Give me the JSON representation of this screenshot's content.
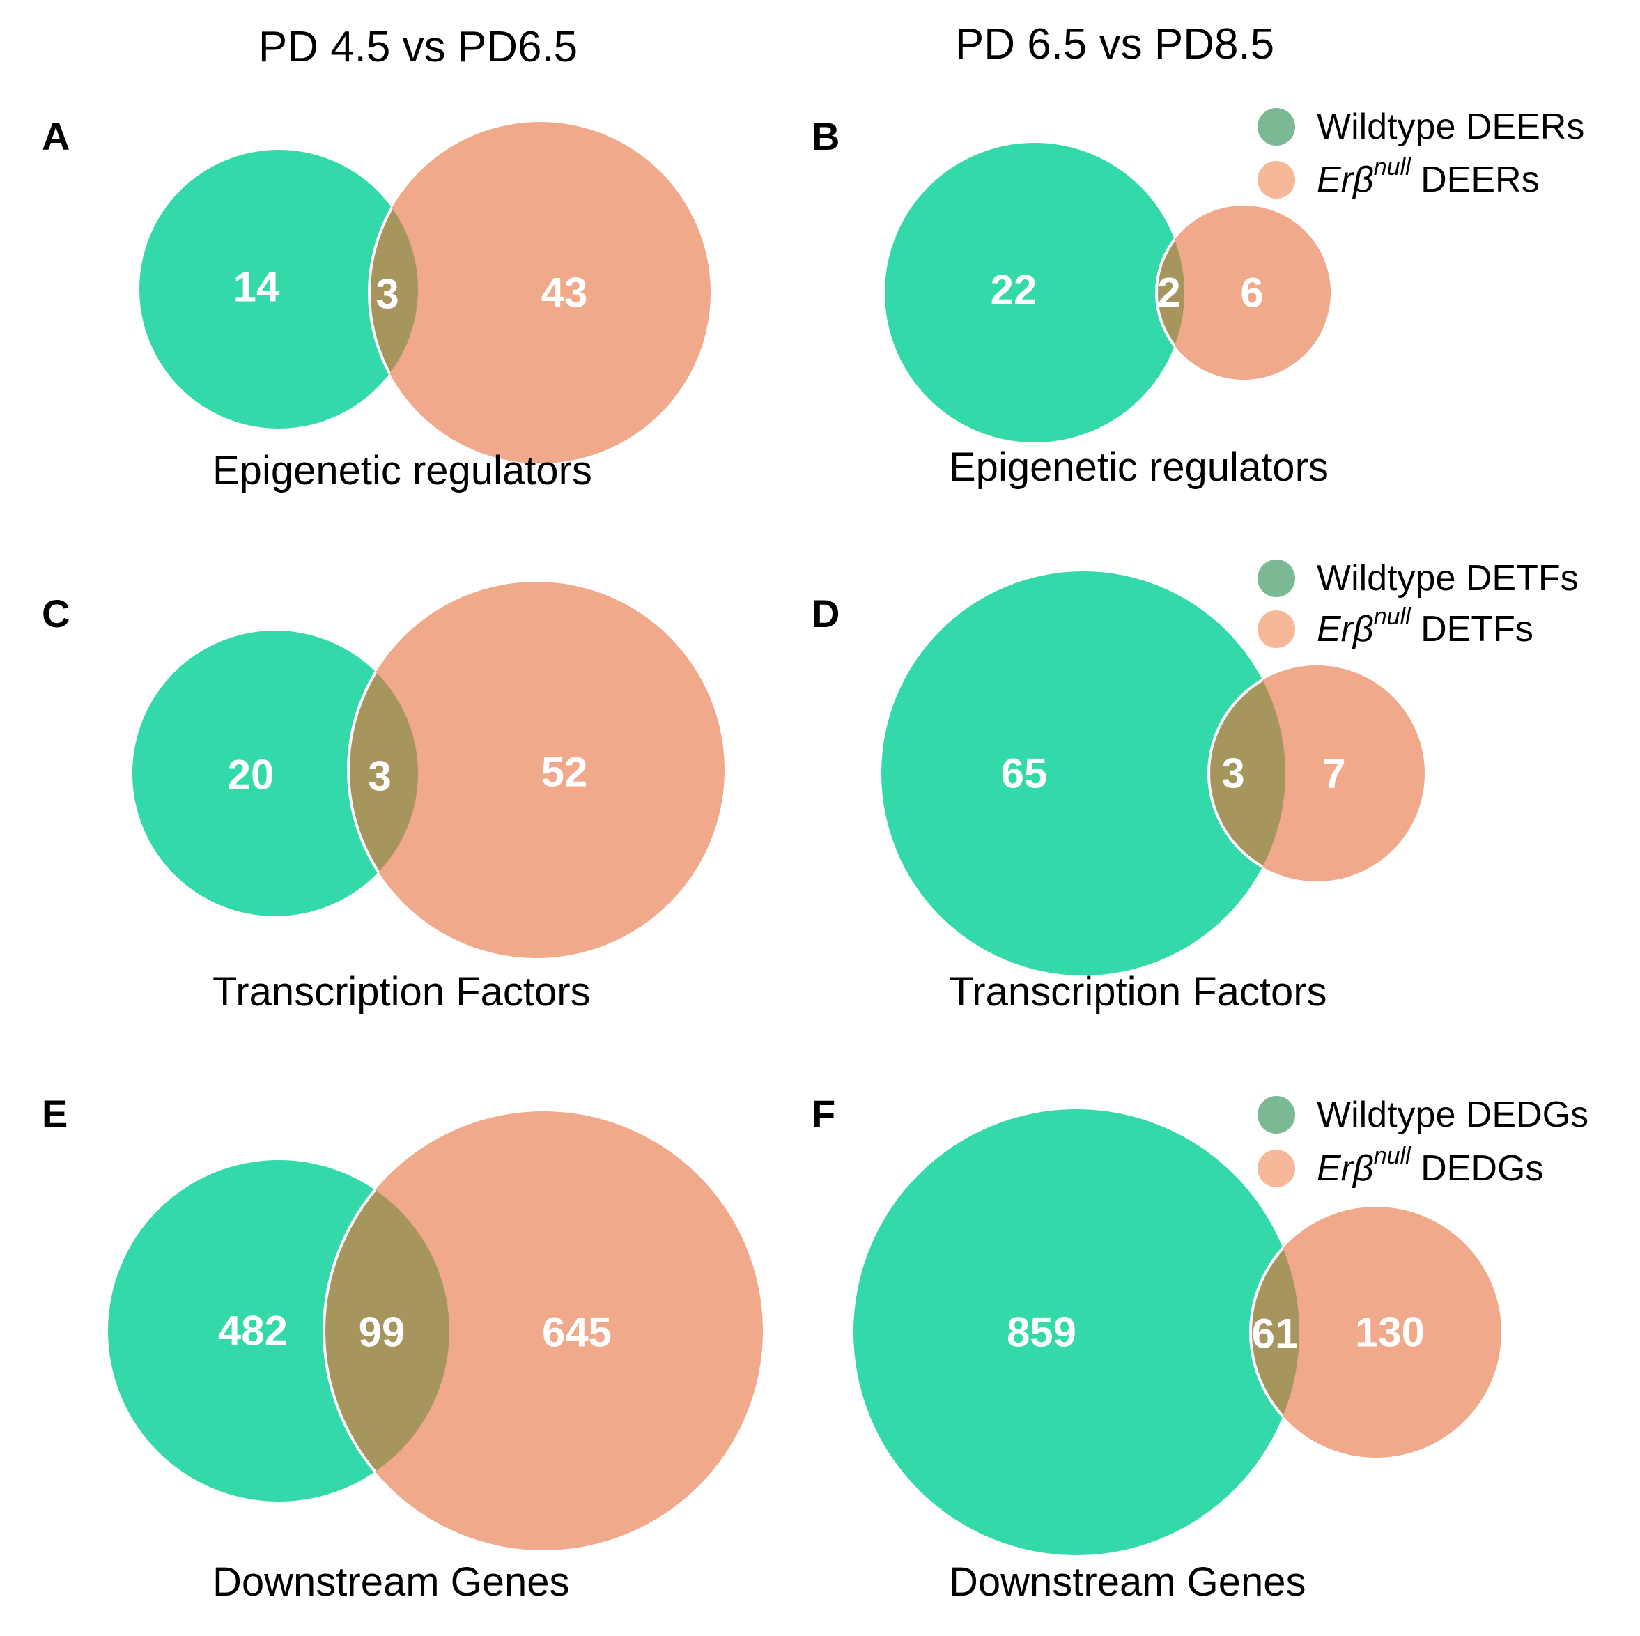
{
  "columns": {
    "left_title": "PD 4.5 vs PD6.5",
    "right_title": "PD 6.5 vs PD8.5"
  },
  "colors": {
    "wildtype": "#33d9a8",
    "null": "#f0a98b",
    "overlap": "#a6955c",
    "legend_wildtype": "#7bb894",
    "legend_null": "#f7b89a"
  },
  "panels": [
    {
      "id": "A",
      "letter": "A",
      "caption": "Epigenetic regulators",
      "wildtype_only": "14",
      "overlap": "3",
      "null_only": "43"
    },
    {
      "id": "B",
      "letter": "B",
      "caption": "Epigenetic regulators",
      "wildtype_only": "22",
      "overlap": "2",
      "null_only": "6",
      "legend": {
        "wildtype_label": "Wildtype DEERs",
        "null_gene": "Erβ",
        "null_sup": "null",
        "null_suffix": " DEERs"
      }
    },
    {
      "id": "C",
      "letter": "C",
      "caption": "Transcription Factors",
      "wildtype_only": "20",
      "overlap": "3",
      "null_only": "52"
    },
    {
      "id": "D",
      "letter": "D",
      "caption": "Transcription Factors",
      "wildtype_only": "65",
      "overlap": "3",
      "null_only": "7",
      "legend": {
        "wildtype_label": "Wildtype DETFs",
        "null_gene": "Erβ",
        "null_sup": "null",
        "null_suffix": " DETFs"
      }
    },
    {
      "id": "E",
      "letter": "E",
      "caption": "Downstream Genes",
      "wildtype_only": "482",
      "overlap": "99",
      "null_only": "645"
    },
    {
      "id": "F",
      "letter": "F",
      "caption": "Downstream Genes",
      "wildtype_only": "859",
      "overlap": "61",
      "null_only": "130",
      "legend": {
        "wildtype_label": "Wildtype DEDGs",
        "null_gene": "Erβ",
        "null_sup": "null",
        "null_suffix": " DEDGs"
      }
    }
  ]
}
